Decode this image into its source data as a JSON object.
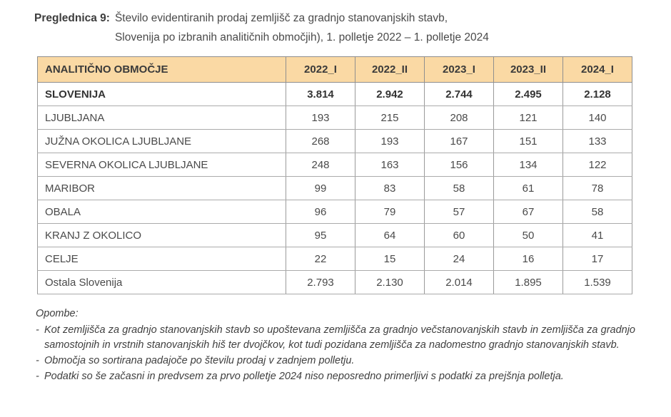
{
  "title": {
    "label": "Preglednica 9:",
    "line1": "Število evidentiranih prodaj zemljišč za gradnjo stanovanjskih stavb,",
    "line2": "Slovenija po izbranih analitičnih območjih), 1. polletje 2022 – 1. polletje 2024"
  },
  "table": {
    "header_bg": "#FAD9A4",
    "header": {
      "region": "ANALITIČNO OBMOČJE",
      "c1": "2022_I",
      "c2": "2022_II",
      "c3": "2023_I",
      "c4": "2023_II",
      "c5": "2024_I"
    },
    "rows": [
      {
        "name": "SLOVENIJA",
        "values": [
          "3.814",
          "2.942",
          "2.744",
          "2.495",
          "2.128"
        ]
      },
      {
        "name": "LJUBLJANA",
        "values": [
          "193",
          "215",
          "208",
          "121",
          "140"
        ]
      },
      {
        "name": "JUŽNA OKOLICA LJUBLJANE",
        "values": [
          "268",
          "193",
          "167",
          "151",
          "133"
        ]
      },
      {
        "name": "SEVERNA OKOLICA LJUBLJANE",
        "values": [
          "248",
          "163",
          "156",
          "134",
          "122"
        ]
      },
      {
        "name": "MARIBOR",
        "values": [
          "99",
          "83",
          "58",
          "61",
          "78"
        ]
      },
      {
        "name": "OBALA",
        "values": [
          "96",
          "79",
          "57",
          "67",
          "58"
        ]
      },
      {
        "name": "KRANJ Z OKOLICO",
        "values": [
          "95",
          "64",
          "60",
          "50",
          "41"
        ]
      },
      {
        "name": "CELJE",
        "values": [
          "22",
          "15",
          "24",
          "16",
          "17"
        ]
      },
      {
        "name": "Ostala Slovenija",
        "values": [
          "2.793",
          "2.130",
          "2.014",
          "1.895",
          "1.539"
        ]
      }
    ]
  },
  "notes": {
    "heading": "Opombe:",
    "bullet": "-",
    "items": [
      "Kot zemljišča za gradnjo stanovanjskih stavb so upoštevana zemljišča za gradnjo večstanovanjskih stavb in zemljišča za gradnjo samostojnih in vrstnih stanovanjskih hiš ter dvojčkov, kot tudi pozidana zemljišča za nadomestno gradnjo stanovanjskih stavb.",
      "Območja so sortirana padajoče po številu prodaj v zadnjem polletju.",
      "Podatki so še začasni in predvsem za prvo polletje 2024 niso neposredno primerljivi s podatki za prejšnja polletja."
    ]
  }
}
